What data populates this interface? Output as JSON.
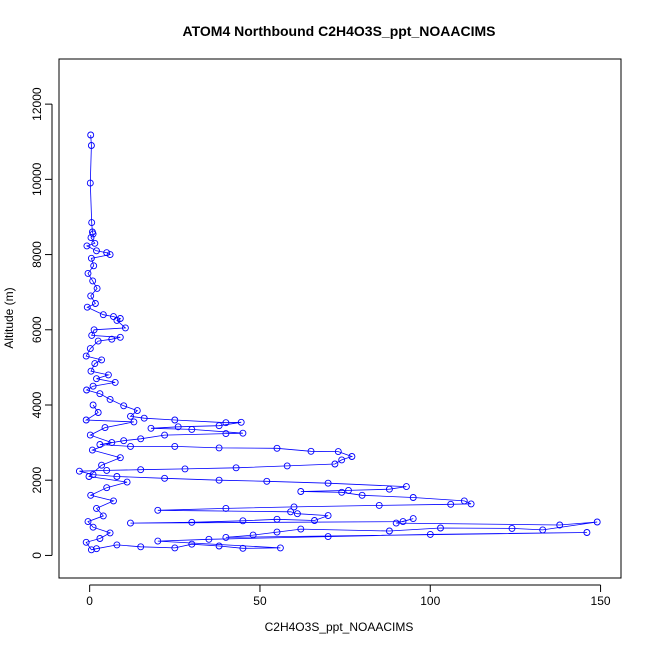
{
  "chart_data": {
    "type": "scatter",
    "title": "ATOM4 Northbound C2H4O3S_ppt_NOAACIMS",
    "xlabel": "C2H4O3S_ppt_NOAACIMS",
    "ylabel": "Altitude (m)",
    "xlim": [
      -9,
      156
    ],
    "ylim": [
      -600,
      13200
    ],
    "x_ticks": [
      0,
      50,
      100,
      150
    ],
    "y_ticks": [
      0,
      2000,
      4000,
      6000,
      8000,
      10000,
      12000
    ],
    "grid": false,
    "legend": "none",
    "style": "points connected by lines",
    "colors": {
      "series": "#0000ff",
      "axis": "#000000",
      "background": "#ffffff"
    },
    "points": [
      [
        0.3,
        11180
      ],
      [
        0.5,
        10900
      ],
      [
        0.2,
        9900
      ],
      [
        0.6,
        8850
      ],
      [
        0.8,
        8600
      ],
      [
        1.0,
        8550
      ],
      [
        0.4,
        8450
      ],
      [
        1.5,
        8300
      ],
      [
        -0.8,
        8230
      ],
      [
        2.0,
        8100
      ],
      [
        5.0,
        8050
      ],
      [
        6.0,
        8000
      ],
      [
        0.5,
        7900
      ],
      [
        1.2,
        7700
      ],
      [
        -0.5,
        7500
      ],
      [
        0.9,
        7300
      ],
      [
        2.2,
        7100
      ],
      [
        0.3,
        6900
      ],
      [
        1.7,
        6700
      ],
      [
        -0.7,
        6600
      ],
      [
        4.0,
        6400
      ],
      [
        7.0,
        6350
      ],
      [
        9.0,
        6300
      ],
      [
        8.0,
        6250
      ],
      [
        10.5,
        6050
      ],
      [
        1.3,
        6000
      ],
      [
        0.6,
        5850
      ],
      [
        9.0,
        5800
      ],
      [
        6.5,
        5750
      ],
      [
        2.5,
        5700
      ],
      [
        0.2,
        5500
      ],
      [
        -1.0,
        5300
      ],
      [
        3.5,
        5200
      ],
      [
        1.5,
        5100
      ],
      [
        0.4,
        4900
      ],
      [
        5.5,
        4800
      ],
      [
        2.0,
        4700
      ],
      [
        7.5,
        4600
      ],
      [
        1.0,
        4500
      ],
      [
        -0.9,
        4400
      ],
      [
        3.0,
        4300
      ],
      [
        6.0,
        4150
      ],
      [
        10.0,
        3980
      ],
      [
        14.0,
        3850
      ],
      [
        12.0,
        3700
      ],
      [
        16.0,
        3650
      ],
      [
        25.0,
        3600
      ],
      [
        40.0,
        3530
      ],
      [
        44.5,
        3540
      ],
      [
        38.0,
        3450
      ],
      [
        26.0,
        3420
      ],
      [
        18.0,
        3380
      ],
      [
        30.0,
        3350
      ],
      [
        45.0,
        3250
      ],
      [
        40.0,
        3240
      ],
      [
        22.0,
        3200
      ],
      [
        15.0,
        3100
      ],
      [
        10.0,
        3050
      ],
      [
        3.0,
        2950
      ],
      [
        12.0,
        2900
      ],
      [
        25.0,
        2900
      ],
      [
        38.0,
        2860
      ],
      [
        55.0,
        2850
      ],
      [
        65.0,
        2770
      ],
      [
        73.0,
        2760
      ],
      [
        77.0,
        2630
      ],
      [
        74.0,
        2540
      ],
      [
        72.0,
        2430
      ],
      [
        58.0,
        2380
      ],
      [
        43.0,
        2330
      ],
      [
        28.0,
        2300
      ],
      [
        15.0,
        2280
      ],
      [
        5.0,
        2260
      ],
      [
        -3.0,
        2240
      ],
      [
        1.0,
        2150
      ],
      [
        8.0,
        2100
      ],
      [
        22.0,
        2050
      ],
      [
        38.0,
        2000
      ],
      [
        52.0,
        1970
      ],
      [
        70.0,
        1920
      ],
      [
        93.0,
        1830
      ],
      [
        88.0,
        1760
      ],
      [
        76.0,
        1730
      ],
      [
        62.0,
        1700
      ],
      [
        74.0,
        1680
      ],
      [
        80.0,
        1600
      ],
      [
        95.0,
        1540
      ],
      [
        110.0,
        1450
      ],
      [
        112.0,
        1370
      ],
      [
        106.0,
        1360
      ],
      [
        85.0,
        1330
      ],
      [
        60.0,
        1290
      ],
      [
        40.0,
        1250
      ],
      [
        20.0,
        1200
      ],
      [
        59.0,
        1160
      ],
      [
        61.0,
        1110
      ],
      [
        70.0,
        1060
      ],
      [
        66.0,
        930
      ],
      [
        55.0,
        960
      ],
      [
        45.0,
        920
      ],
      [
        30.0,
        880
      ],
      [
        12.0,
        860
      ],
      [
        92.0,
        900
      ],
      [
        95.0,
        980
      ],
      [
        90.0,
        860
      ],
      [
        138.0,
        810
      ],
      [
        149.0,
        890
      ],
      [
        133.0,
        680
      ],
      [
        124.0,
        720
      ],
      [
        103.0,
        730
      ],
      [
        88.0,
        650
      ],
      [
        62.0,
        700
      ],
      [
        55.0,
        620
      ],
      [
        48.0,
        540
      ],
      [
        40.0,
        480
      ],
      [
        146.0,
        610
      ],
      [
        100.0,
        560
      ],
      [
        70.0,
        500
      ],
      [
        35.0,
        430
      ],
      [
        20.0,
        380
      ],
      [
        56.0,
        200
      ],
      [
        45.0,
        190
      ],
      [
        38.0,
        250
      ],
      [
        30.0,
        300
      ],
      [
        25.0,
        200
      ],
      [
        15.0,
        230
      ],
      [
        8.0,
        280
      ],
      [
        2.0,
        180
      ],
      [
        0.5,
        150
      ],
      [
        -1.0,
        350
      ],
      [
        3.0,
        450
      ],
      [
        6.0,
        600
      ],
      [
        1.0,
        750
      ],
      [
        -0.5,
        900
      ],
      [
        4.0,
        1050
      ],
      [
        2.0,
        1250
      ],
      [
        7.0,
        1450
      ],
      [
        0.3,
        1600
      ],
      [
        5.0,
        1800
      ],
      [
        11.0,
        1950
      ],
      [
        -0.2,
        2100
      ],
      [
        3.5,
        2400
      ],
      [
        9.0,
        2600
      ],
      [
        0.8,
        2800
      ],
      [
        6.5,
        3000
      ],
      [
        0.2,
        3200
      ],
      [
        4.5,
        3400
      ],
      [
        13.0,
        3550
      ],
      [
        -1.0,
        3600
      ],
      [
        2.5,
        3800
      ],
      [
        1.0,
        4000
      ]
    ]
  }
}
